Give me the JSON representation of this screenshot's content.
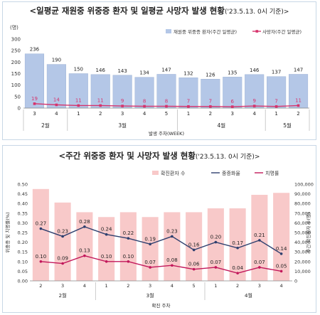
{
  "chart_data": [
    {
      "type": "bar",
      "title": "<일평균 재원중 위중증 환자 및 일평균 사망자 발생 현황",
      "title_suffix": "('23.5.13. 0시 기준)>",
      "ylabel": "(명)",
      "xlabel": "발생 주차(WEEK)",
      "ylim": [
        0,
        300
      ],
      "yticks": [
        "0",
        "50",
        "100",
        "150",
        "200",
        "250",
        "300"
      ],
      "categories": [
        "3",
        "4",
        "1",
        "2",
        "3",
        "4",
        "5",
        "1",
        "2",
        "3",
        "4",
        "1",
        "2"
      ],
      "month_groups": [
        {
          "label": "2월",
          "span": 2
        },
        {
          "label": "3월",
          "span": 5
        },
        {
          "label": "4월",
          "span": 4
        },
        {
          "label": "5월",
          "span": 2
        }
      ],
      "series": [
        {
          "name": "재원중 위중증 환자(주간 일평균)",
          "type": "bar",
          "color": "#b4c7e7",
          "values": [
            236,
            190,
            150,
            146,
            143,
            134,
            147,
            132,
            126,
            135,
            146,
            137,
            147
          ]
        },
        {
          "name": "사망자(주간 일평균)",
          "type": "line",
          "color": "#d6336c",
          "values": [
            19,
            14,
            11,
            11,
            9,
            8,
            8,
            7,
            7,
            6,
            9,
            7,
            11
          ]
        }
      ],
      "legend_position": "top-right",
      "grid": false
    },
    {
      "type": "bar",
      "title": "<주간 위중증 환자 및 사망자 발생 현황",
      "title_suffix": "('23.5.13. 0시 기준)>",
      "ylabel_left": "위중증 및 치명률(%)",
      "ylabel_right": "주간 확진환자 수(명)",
      "xlabel": "확진 주차",
      "ylim_left": [
        0,
        0.5
      ],
      "ylim_right": [
        0,
        100000
      ],
      "yticks_left": [
        "0.00",
        "0.05",
        "0.10",
        "0.15",
        "0.20",
        "0.25",
        "0.30",
        "0.35",
        "0.40",
        "0.45",
        "0.50"
      ],
      "yticks_right": [
        "0",
        "10,000",
        "20,000",
        "30,000",
        "40,000",
        "50,000",
        "60,000",
        "70,000",
        "80,000",
        "90,000",
        "100,000"
      ],
      "categories": [
        "2",
        "3",
        "4",
        "1",
        "2",
        "3",
        "4",
        "5",
        "1",
        "2",
        "3",
        "4"
      ],
      "month_groups": [
        {
          "label": "2월",
          "span": 3
        },
        {
          "label": "3월",
          "span": 5
        },
        {
          "label": "4월",
          "span": 4
        }
      ],
      "series": [
        {
          "name": "확진환자 수",
          "type": "bar",
          "axis": "right",
          "color": "#f8c9c9",
          "values": [
            95000,
            81000,
            71000,
            66000,
            71000,
            66000,
            71000,
            71000,
            75000,
            75000,
            89000,
            91000
          ]
        },
        {
          "name": "중증화율",
          "type": "line",
          "axis": "left",
          "color": "#2e3f6e",
          "values": [
            0.27,
            0.23,
            0.28,
            0.24,
            0.22,
            0.19,
            0.23,
            0.16,
            0.2,
            0.17,
            0.21,
            0.14
          ]
        },
        {
          "name": "치명률",
          "type": "line",
          "axis": "left",
          "color": "#c2185b",
          "values": [
            0.1,
            0.09,
            0.13,
            0.1,
            0.1,
            0.07,
            0.08,
            0.06,
            0.07,
            0.04,
            0.07,
            0.05
          ]
        }
      ],
      "legend_position": "top",
      "grid": false
    }
  ]
}
